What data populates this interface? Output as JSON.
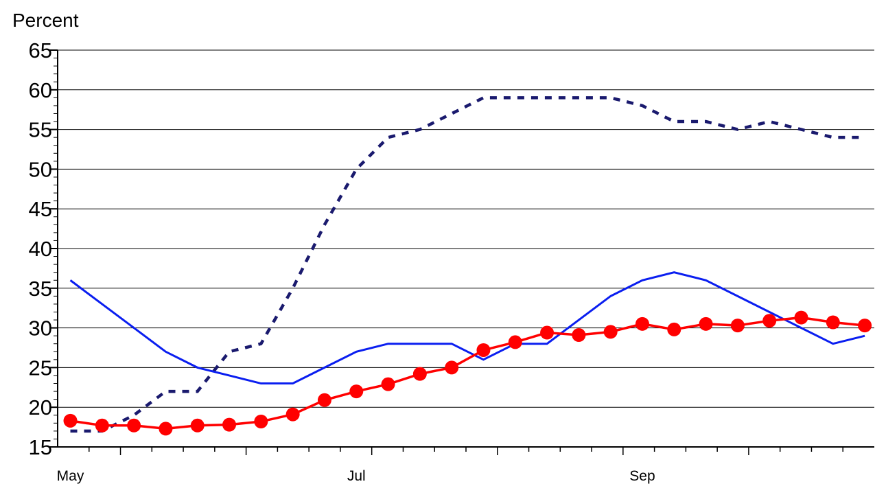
{
  "chart_data": {
    "type": "line",
    "ylabel": "Percent",
    "ylim": [
      15,
      65
    ],
    "yticks": [
      "15",
      "20",
      "25",
      "30",
      "35",
      "40",
      "45",
      "50",
      "55",
      "60",
      "65"
    ],
    "x_tick_labels": [
      {
        "label": "May",
        "x": 0
      },
      {
        "label": "Jul",
        "x": 9
      },
      {
        "label": "Sep",
        "x": 18
      }
    ],
    "xlim": [
      -0.4,
      25.3
    ],
    "grid": true,
    "series": [
      {
        "color": "#1a1a6e",
        "style": "dotted",
        "x": [
          0,
          1,
          2,
          3,
          4,
          5,
          6,
          7,
          8,
          9,
          10,
          11,
          12,
          13,
          14,
          15,
          16,
          17,
          18,
          19,
          20,
          21,
          22,
          23,
          24,
          25
        ],
        "values": [
          17,
          17,
          19,
          22,
          22,
          27,
          28,
          35,
          43,
          50,
          54,
          55,
          57,
          59,
          59,
          59,
          59,
          59,
          58,
          56,
          56,
          55,
          56,
          55,
          54,
          54
        ]
      },
      {
        "color": "#0a1ef0",
        "style": "solid",
        "x": [
          0,
          1,
          2,
          3,
          4,
          5,
          6,
          7,
          8,
          9,
          10,
          11,
          12,
          13,
          14,
          15,
          16,
          17,
          18,
          19,
          20,
          21,
          22,
          23,
          24,
          25
        ],
        "values": [
          36,
          33,
          30,
          27,
          25,
          24,
          23,
          23,
          25,
          27,
          28,
          28,
          28,
          26,
          28,
          28,
          31,
          34,
          36,
          37,
          36,
          34,
          32,
          30,
          28,
          29
        ]
      },
      {
        "color": "#ff0000",
        "style": "markers",
        "x": [
          0,
          1,
          2,
          3,
          4,
          5,
          6,
          7,
          8,
          9,
          10,
          11,
          12,
          13,
          14,
          15,
          16,
          17,
          18,
          19,
          20,
          21,
          22,
          23,
          24,
          25
        ],
        "values": [
          18.3,
          17.7,
          17.7,
          17.3,
          17.7,
          17.8,
          18.2,
          19.1,
          20.9,
          22.0,
          22.9,
          24.2,
          25.0,
          27.2,
          28.2,
          29.4,
          29.1,
          29.5,
          30.5,
          29.8,
          30.5,
          30.3,
          30.9,
          31.3,
          30.7,
          30.3
        ]
      }
    ]
  }
}
